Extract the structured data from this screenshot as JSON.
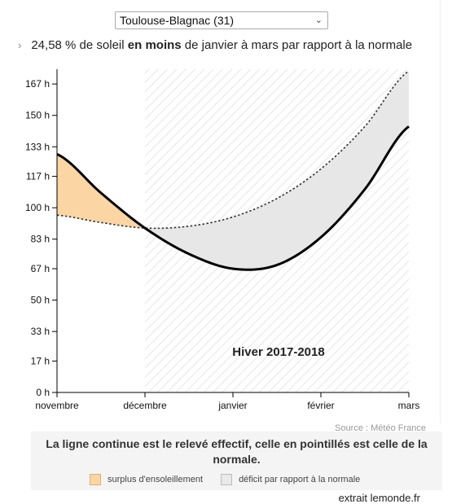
{
  "station_select": {
    "value": "Toulouse-Blagnac (31)"
  },
  "summary": {
    "prefix": "24,58 % de soleil",
    "emphasis": "en moins",
    "suffix": "de janvier à mars par rapport à la normale"
  },
  "chart_data": {
    "type": "line",
    "title": "Hiver 2017-2018",
    "xlabel": "",
    "ylabel": "",
    "categories": [
      "novembre",
      "décembre",
      "janvier",
      "février",
      "mars"
    ],
    "ylim": [
      0,
      175
    ],
    "y_ticks": [
      "0 h",
      "17 h",
      "33 h",
      "50 h",
      "67 h",
      "83 h",
      "100 h",
      "117 h",
      "133 h",
      "150 h",
      "167 h"
    ],
    "y_tick_values": [
      0,
      17,
      33,
      50,
      67,
      83,
      100,
      117,
      133,
      150,
      167
    ],
    "series": [
      {
        "style": "solid",
        "x": [
          0,
          0.5,
          1,
          1.5,
          2,
          2.5,
          3,
          3.5,
          4
        ],
        "values": [
          129,
          108,
          89,
          75,
          67,
          69,
          84,
          110,
          144
        ]
      },
      {
        "style": "dotted",
        "x": [
          0,
          0.5,
          1,
          1.5,
          2,
          2.5,
          3,
          3.5,
          4
        ],
        "values": [
          96,
          92,
          89,
          90,
          95,
          105,
          121,
          144,
          174
        ]
      }
    ],
    "grid": false,
    "colors": {
      "surplus": "#fbd5a4",
      "deficit": "#e9e9e9"
    }
  },
  "source": "Source : Météo France",
  "legend": {
    "title": "La ligne continue est le relevé effectif, celle en pointillés est celle de la normale.",
    "surplus_label": "surplus d'ensoleillement",
    "deficit_label": "déficit par rapport à la normale"
  },
  "credit": "extrait lemonde.fr"
}
